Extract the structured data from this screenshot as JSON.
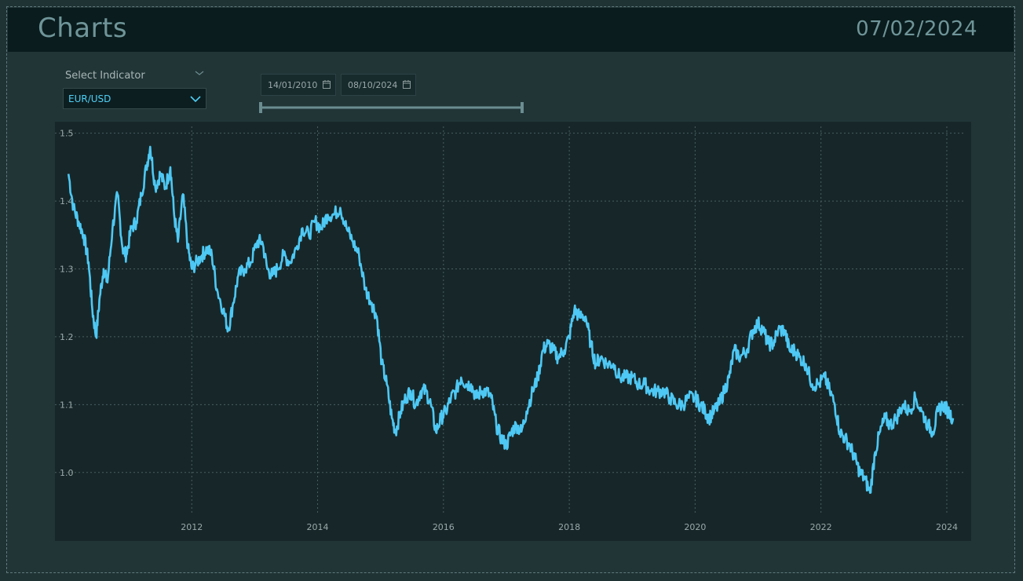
{
  "header": {
    "title": "Charts",
    "date": "07/02/2024"
  },
  "indicator": {
    "label": "Select Indicator",
    "value": "EUR/USD"
  },
  "date_range": {
    "start": "14/01/2010",
    "end": "08/10/2024"
  },
  "colors": {
    "line": "#4ec8f4",
    "accent_text": "#6f9599",
    "background": "#1f3234"
  },
  "chart_data": {
    "type": "line",
    "title": "",
    "xlabel": "",
    "ylabel": "",
    "xlim": [
      2010.3,
      2024.3
    ],
    "ylim": [
      0.95,
      1.51
    ],
    "xticks": [
      2012,
      2014,
      2016,
      2018,
      2020,
      2022,
      2024
    ],
    "yticks": [
      1.0,
      1.1,
      1.2,
      1.3,
      1.4,
      1.5
    ],
    "ytick_labels": [
      "1.0",
      "1.1",
      "1.2",
      "1.3",
      "1.4",
      "1.5"
    ],
    "grid": true,
    "series": [
      {
        "values": [
          [
            2010.04,
            1.44
          ],
          [
            2010.12,
            1.39
          ],
          [
            2010.2,
            1.37
          ],
          [
            2010.28,
            1.35
          ],
          [
            2010.36,
            1.31
          ],
          [
            2010.42,
            1.24
          ],
          [
            2010.48,
            1.2
          ],
          [
            2010.54,
            1.26
          ],
          [
            2010.6,
            1.3
          ],
          [
            2010.66,
            1.28
          ],
          [
            2010.74,
            1.36
          ],
          [
            2010.82,
            1.41
          ],
          [
            2010.9,
            1.33
          ],
          [
            2010.96,
            1.32
          ],
          [
            2011.04,
            1.36
          ],
          [
            2011.12,
            1.37
          ],
          [
            2011.2,
            1.41
          ],
          [
            2011.28,
            1.45
          ],
          [
            2011.34,
            1.48
          ],
          [
            2011.42,
            1.42
          ],
          [
            2011.5,
            1.44
          ],
          [
            2011.58,
            1.42
          ],
          [
            2011.66,
            1.45
          ],
          [
            2011.72,
            1.38
          ],
          [
            2011.78,
            1.34
          ],
          [
            2011.86,
            1.41
          ],
          [
            2011.94,
            1.33
          ],
          [
            2012.0,
            1.3
          ],
          [
            2012.08,
            1.31
          ],
          [
            2012.16,
            1.32
          ],
          [
            2012.24,
            1.33
          ],
          [
            2012.32,
            1.32
          ],
          [
            2012.4,
            1.27
          ],
          [
            2012.5,
            1.24
          ],
          [
            2012.58,
            1.21
          ],
          [
            2012.66,
            1.25
          ],
          [
            2012.74,
            1.29
          ],
          [
            2012.84,
            1.3
          ],
          [
            2012.94,
            1.31
          ],
          [
            2013.04,
            1.34
          ],
          [
            2013.12,
            1.34
          ],
          [
            2013.2,
            1.3
          ],
          [
            2013.28,
            1.29
          ],
          [
            2013.36,
            1.3
          ],
          [
            2013.46,
            1.32
          ],
          [
            2013.56,
            1.31
          ],
          [
            2013.66,
            1.33
          ],
          [
            2013.76,
            1.36
          ],
          [
            2013.86,
            1.35
          ],
          [
            2013.96,
            1.37
          ],
          [
            2014.06,
            1.36
          ],
          [
            2014.16,
            1.38
          ],
          [
            2014.26,
            1.38
          ],
          [
            2014.36,
            1.39
          ],
          [
            2014.46,
            1.36
          ],
          [
            2014.56,
            1.34
          ],
          [
            2014.66,
            1.32
          ],
          [
            2014.76,
            1.27
          ],
          [
            2014.86,
            1.25
          ],
          [
            2014.94,
            1.23
          ],
          [
            2015.02,
            1.16
          ],
          [
            2015.1,
            1.13
          ],
          [
            2015.18,
            1.08
          ],
          [
            2015.24,
            1.06
          ],
          [
            2015.32,
            1.09
          ],
          [
            2015.4,
            1.11
          ],
          [
            2015.48,
            1.12
          ],
          [
            2015.56,
            1.1
          ],
          [
            2015.64,
            1.12
          ],
          [
            2015.72,
            1.12
          ],
          [
            2015.8,
            1.1
          ],
          [
            2015.88,
            1.06
          ],
          [
            2015.96,
            1.08
          ],
          [
            2016.04,
            1.09
          ],
          [
            2016.12,
            1.11
          ],
          [
            2016.2,
            1.12
          ],
          [
            2016.28,
            1.14
          ],
          [
            2016.36,
            1.13
          ],
          [
            2016.44,
            1.13
          ],
          [
            2016.52,
            1.11
          ],
          [
            2016.6,
            1.12
          ],
          [
            2016.68,
            1.12
          ],
          [
            2016.76,
            1.11
          ],
          [
            2016.84,
            1.07
          ],
          [
            2016.92,
            1.05
          ],
          [
            2017.0,
            1.04
          ],
          [
            2017.08,
            1.06
          ],
          [
            2017.16,
            1.07
          ],
          [
            2017.24,
            1.06
          ],
          [
            2017.32,
            1.09
          ],
          [
            2017.42,
            1.12
          ],
          [
            2017.5,
            1.14
          ],
          [
            2017.58,
            1.18
          ],
          [
            2017.66,
            1.19
          ],
          [
            2017.74,
            1.18
          ],
          [
            2017.82,
            1.17
          ],
          [
            2017.92,
            1.18
          ],
          [
            2018.0,
            1.2
          ],
          [
            2018.08,
            1.24
          ],
          [
            2018.16,
            1.23
          ],
          [
            2018.26,
            1.23
          ],
          [
            2018.34,
            1.19
          ],
          [
            2018.42,
            1.16
          ],
          [
            2018.5,
            1.17
          ],
          [
            2018.6,
            1.16
          ],
          [
            2018.7,
            1.16
          ],
          [
            2018.8,
            1.14
          ],
          [
            2018.9,
            1.14
          ],
          [
            2019.0,
            1.14
          ],
          [
            2019.1,
            1.13
          ],
          [
            2019.2,
            1.13
          ],
          [
            2019.3,
            1.12
          ],
          [
            2019.4,
            1.12
          ],
          [
            2019.5,
            1.12
          ],
          [
            2019.6,
            1.11
          ],
          [
            2019.7,
            1.1
          ],
          [
            2019.8,
            1.1
          ],
          [
            2019.9,
            1.11
          ],
          [
            2020.0,
            1.11
          ],
          [
            2020.08,
            1.1
          ],
          [
            2020.16,
            1.09
          ],
          [
            2020.22,
            1.08
          ],
          [
            2020.3,
            1.09
          ],
          [
            2020.38,
            1.1
          ],
          [
            2020.46,
            1.12
          ],
          [
            2020.54,
            1.14
          ],
          [
            2020.62,
            1.18
          ],
          [
            2020.72,
            1.17
          ],
          [
            2020.82,
            1.18
          ],
          [
            2020.92,
            1.21
          ],
          [
            2021.0,
            1.22
          ],
          [
            2021.08,
            1.21
          ],
          [
            2021.16,
            1.19
          ],
          [
            2021.24,
            1.19
          ],
          [
            2021.32,
            1.21
          ],
          [
            2021.42,
            1.21
          ],
          [
            2021.5,
            1.18
          ],
          [
            2021.58,
            1.18
          ],
          [
            2021.66,
            1.17
          ],
          [
            2021.76,
            1.16
          ],
          [
            2021.86,
            1.13
          ],
          [
            2021.96,
            1.13
          ],
          [
            2022.06,
            1.14
          ],
          [
            2022.14,
            1.12
          ],
          [
            2022.22,
            1.1
          ],
          [
            2022.3,
            1.06
          ],
          [
            2022.38,
            1.05
          ],
          [
            2022.46,
            1.04
          ],
          [
            2022.54,
            1.02
          ],
          [
            2022.62,
            1.0
          ],
          [
            2022.7,
            0.99
          ],
          [
            2022.78,
            0.97
          ],
          [
            2022.86,
            1.03
          ],
          [
            2022.94,
            1.06
          ],
          [
            2023.02,
            1.08
          ],
          [
            2023.1,
            1.07
          ],
          [
            2023.2,
            1.08
          ],
          [
            2023.3,
            1.1
          ],
          [
            2023.4,
            1.09
          ],
          [
            2023.5,
            1.11
          ],
          [
            2023.6,
            1.09
          ],
          [
            2023.7,
            1.07
          ],
          [
            2023.78,
            1.06
          ],
          [
            2023.86,
            1.09
          ],
          [
            2023.94,
            1.1
          ],
          [
            2024.02,
            1.09
          ],
          [
            2024.1,
            1.08
          ]
        ]
      }
    ]
  }
}
